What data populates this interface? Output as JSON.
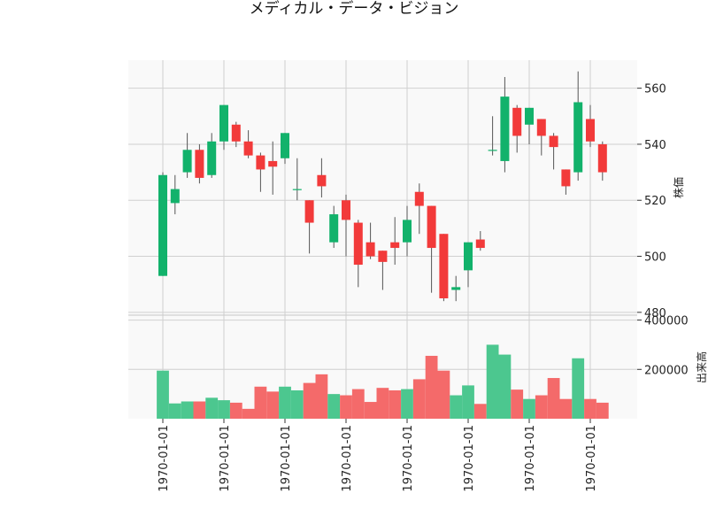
{
  "chart_data": {
    "type": "candlestick",
    "title": "メディカル・データ・ビジョン",
    "colors": {
      "up": "#12b26b",
      "down": "#f23a3a",
      "up_vol": "#4cc78f",
      "down_vol": "#f46a6a",
      "wick": "#555555",
      "grid": "#d0d0d0",
      "panel": "#f9f9f9"
    },
    "price_axis": {
      "label": "株価",
      "ticks": [
        480,
        500,
        520,
        540,
        560
      ],
      "ylim": [
        479,
        570
      ]
    },
    "volume_axis": {
      "label": "出来高",
      "ticks": [
        200000,
        400000
      ],
      "ylim": [
        0,
        420000
      ]
    },
    "x_tick_label": "1970-01-01",
    "x_tick_indices": [
      0,
      5,
      10,
      15,
      20,
      25,
      30,
      35
    ],
    "candles": [
      {
        "open": 493,
        "high": 530,
        "low": 493,
        "close": 529,
        "volume": 195000
      },
      {
        "open": 519,
        "high": 529,
        "low": 515,
        "close": 524,
        "volume": 62000
      },
      {
        "open": 530,
        "high": 544,
        "low": 528,
        "close": 538,
        "volume": 70000
      },
      {
        "open": 538,
        "high": 540,
        "low": 526,
        "close": 528,
        "volume": 70000
      },
      {
        "open": 529,
        "high": 544,
        "low": 528,
        "close": 541,
        "volume": 85000
      },
      {
        "open": 541,
        "high": 554,
        "low": 538,
        "close": 554,
        "volume": 75000
      },
      {
        "open": 547,
        "high": 548,
        "low": 539,
        "close": 541,
        "volume": 65000
      },
      {
        "open": 541,
        "high": 545,
        "low": 535,
        "close": 536,
        "volume": 40000
      },
      {
        "open": 536,
        "high": 537,
        "low": 523,
        "close": 531,
        "volume": 130000
      },
      {
        "open": 534,
        "high": 541,
        "low": 522,
        "close": 532,
        "volume": 110000
      },
      {
        "open": 535,
        "high": 544,
        "low": 533,
        "close": 544,
        "volume": 130000
      },
      {
        "open": 524,
        "high": 535,
        "low": 520,
        "close": 524,
        "volume": 115000
      },
      {
        "open": 520,
        "high": 520,
        "low": 501,
        "close": 512,
        "volume": 145000
      },
      {
        "open": 529,
        "high": 535,
        "low": 521,
        "close": 525,
        "volume": 180000
      },
      {
        "open": 505,
        "high": 518,
        "low": 503,
        "close": 515,
        "volume": 100000
      },
      {
        "open": 520,
        "high": 522,
        "low": 500,
        "close": 513,
        "volume": 95000
      },
      {
        "open": 512,
        "high": 513,
        "low": 489,
        "close": 497,
        "volume": 120000
      },
      {
        "open": 505,
        "high": 512,
        "low": 499,
        "close": 500,
        "volume": 68000
      },
      {
        "open": 502,
        "high": 502,
        "low": 488,
        "close": 498,
        "volume": 125000
      },
      {
        "open": 505,
        "high": 514,
        "low": 497,
        "close": 503,
        "volume": 115000
      },
      {
        "open": 505,
        "high": 518,
        "low": 500,
        "close": 513,
        "volume": 120000
      },
      {
        "open": 523,
        "high": 526,
        "low": 508,
        "close": 518,
        "volume": 160000
      },
      {
        "open": 518,
        "high": 518,
        "low": 487,
        "close": 503,
        "volume": 255000
      },
      {
        "open": 508,
        "high": 508,
        "low": 484,
        "close": 485,
        "volume": 195000
      },
      {
        "open": 488,
        "high": 493,
        "low": 484,
        "close": 489,
        "volume": 95000
      },
      {
        "open": 495,
        "high": 505,
        "low": 489,
        "close": 505,
        "volume": 135000
      },
      {
        "open": 506,
        "high": 509,
        "low": 502,
        "close": 503,
        "volume": 60000
      },
      {
        "open": 538,
        "high": 550,
        "low": 536,
        "close": 538,
        "volume": 300000
      },
      {
        "open": 534,
        "high": 564,
        "low": 530,
        "close": 557,
        "volume": 260000
      },
      {
        "open": 553,
        "high": 554,
        "low": 537,
        "close": 543,
        "volume": 118000
      },
      {
        "open": 547,
        "high": 553,
        "low": 540,
        "close": 553,
        "volume": 80000
      },
      {
        "open": 549,
        "high": 549,
        "low": 536,
        "close": 543,
        "volume": 95000
      },
      {
        "open": 543,
        "high": 544,
        "low": 531,
        "close": 539,
        "volume": 165000
      },
      {
        "open": 531,
        "high": 531,
        "low": 522,
        "close": 525,
        "volume": 80000
      },
      {
        "open": 530,
        "high": 566,
        "low": 527,
        "close": 555,
        "volume": 245000
      },
      {
        "open": 549,
        "high": 554,
        "low": 539,
        "close": 541,
        "volume": 80000
      },
      {
        "open": 540,
        "high": 541,
        "low": 527,
        "close": 530,
        "volume": 65000
      }
    ]
  }
}
